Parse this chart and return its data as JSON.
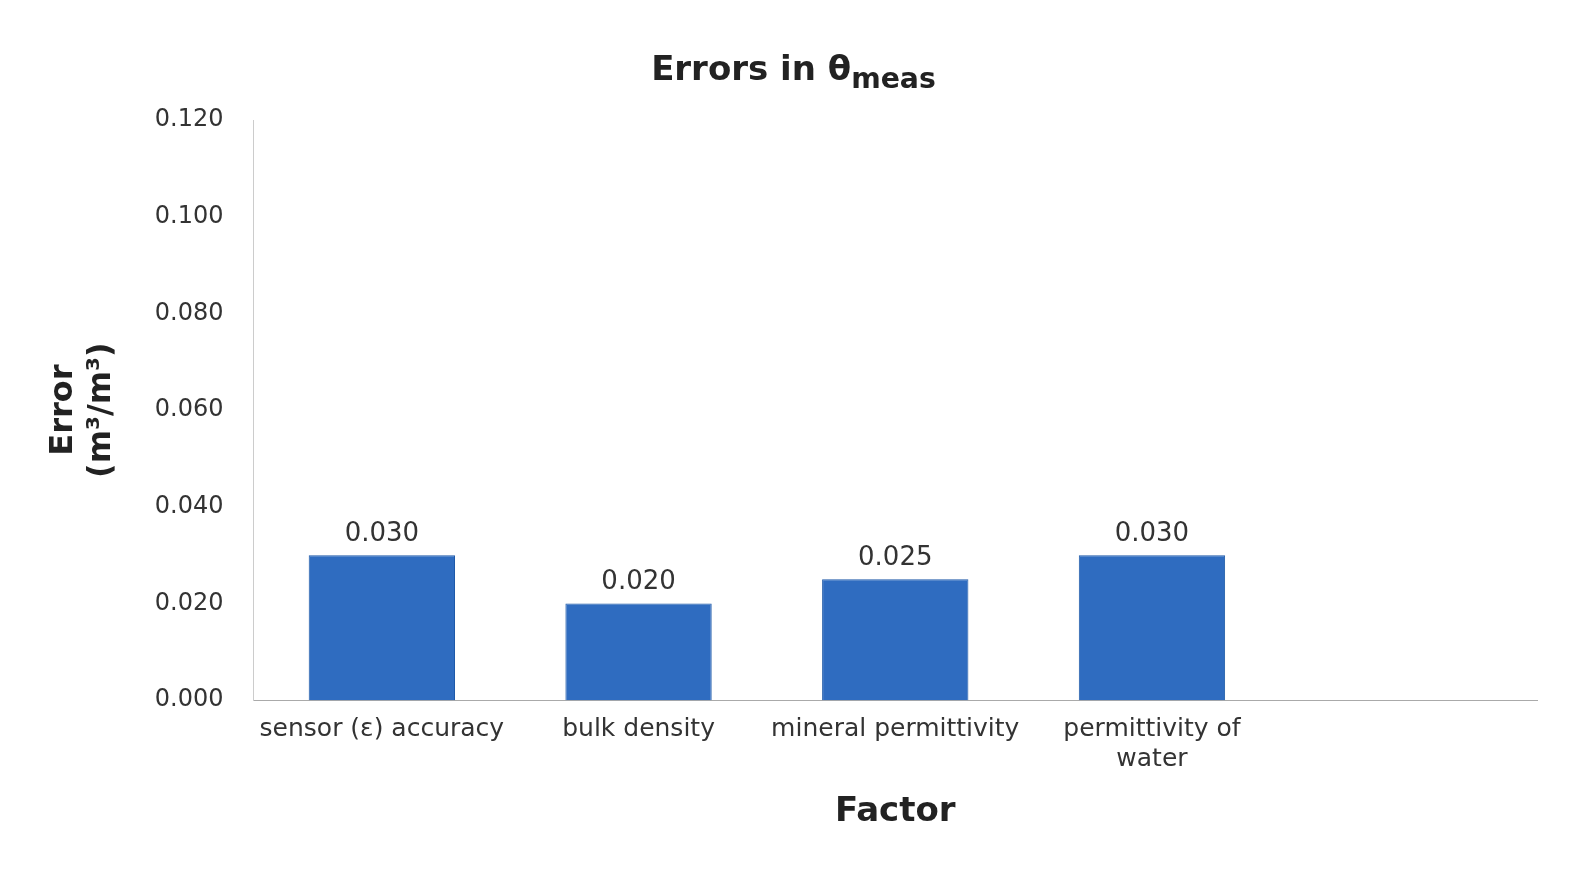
{
  "chart_data": {
    "type": "bar",
    "title": "Errors in θ$_{meas}$",
    "xlabel": "Factor",
    "ylabel": "Error (m³/m³)",
    "categories": [
      "sensor (ε) accuracy",
      "bulk density",
      "mineral permittivity",
      "permittivity of water",
      null
    ],
    "values": [
      0.03,
      0.02,
      0.025,
      0.03,
      null
    ],
    "value_labels": [
      "0.030",
      "0.020",
      "0.025",
      "0.030",
      null
    ],
    "color": "#2f6cc0",
    "ylim": [
      0,
      0.12
    ],
    "yticks": [
      {
        "value": 0,
        "label": "0.000"
      },
      {
        "value": 0.02,
        "label": "0.020"
      },
      {
        "value": 0.04,
        "label": "0.040"
      },
      {
        "value": 0.06,
        "label": "0.060"
      },
      {
        "value": 0.08,
        "label": "0.080"
      },
      {
        "value": 0.1,
        "label": "0.100"
      },
      {
        "value": 0.12,
        "label": "0.120"
      }
    ],
    "grid": false,
    "legend": false
  }
}
